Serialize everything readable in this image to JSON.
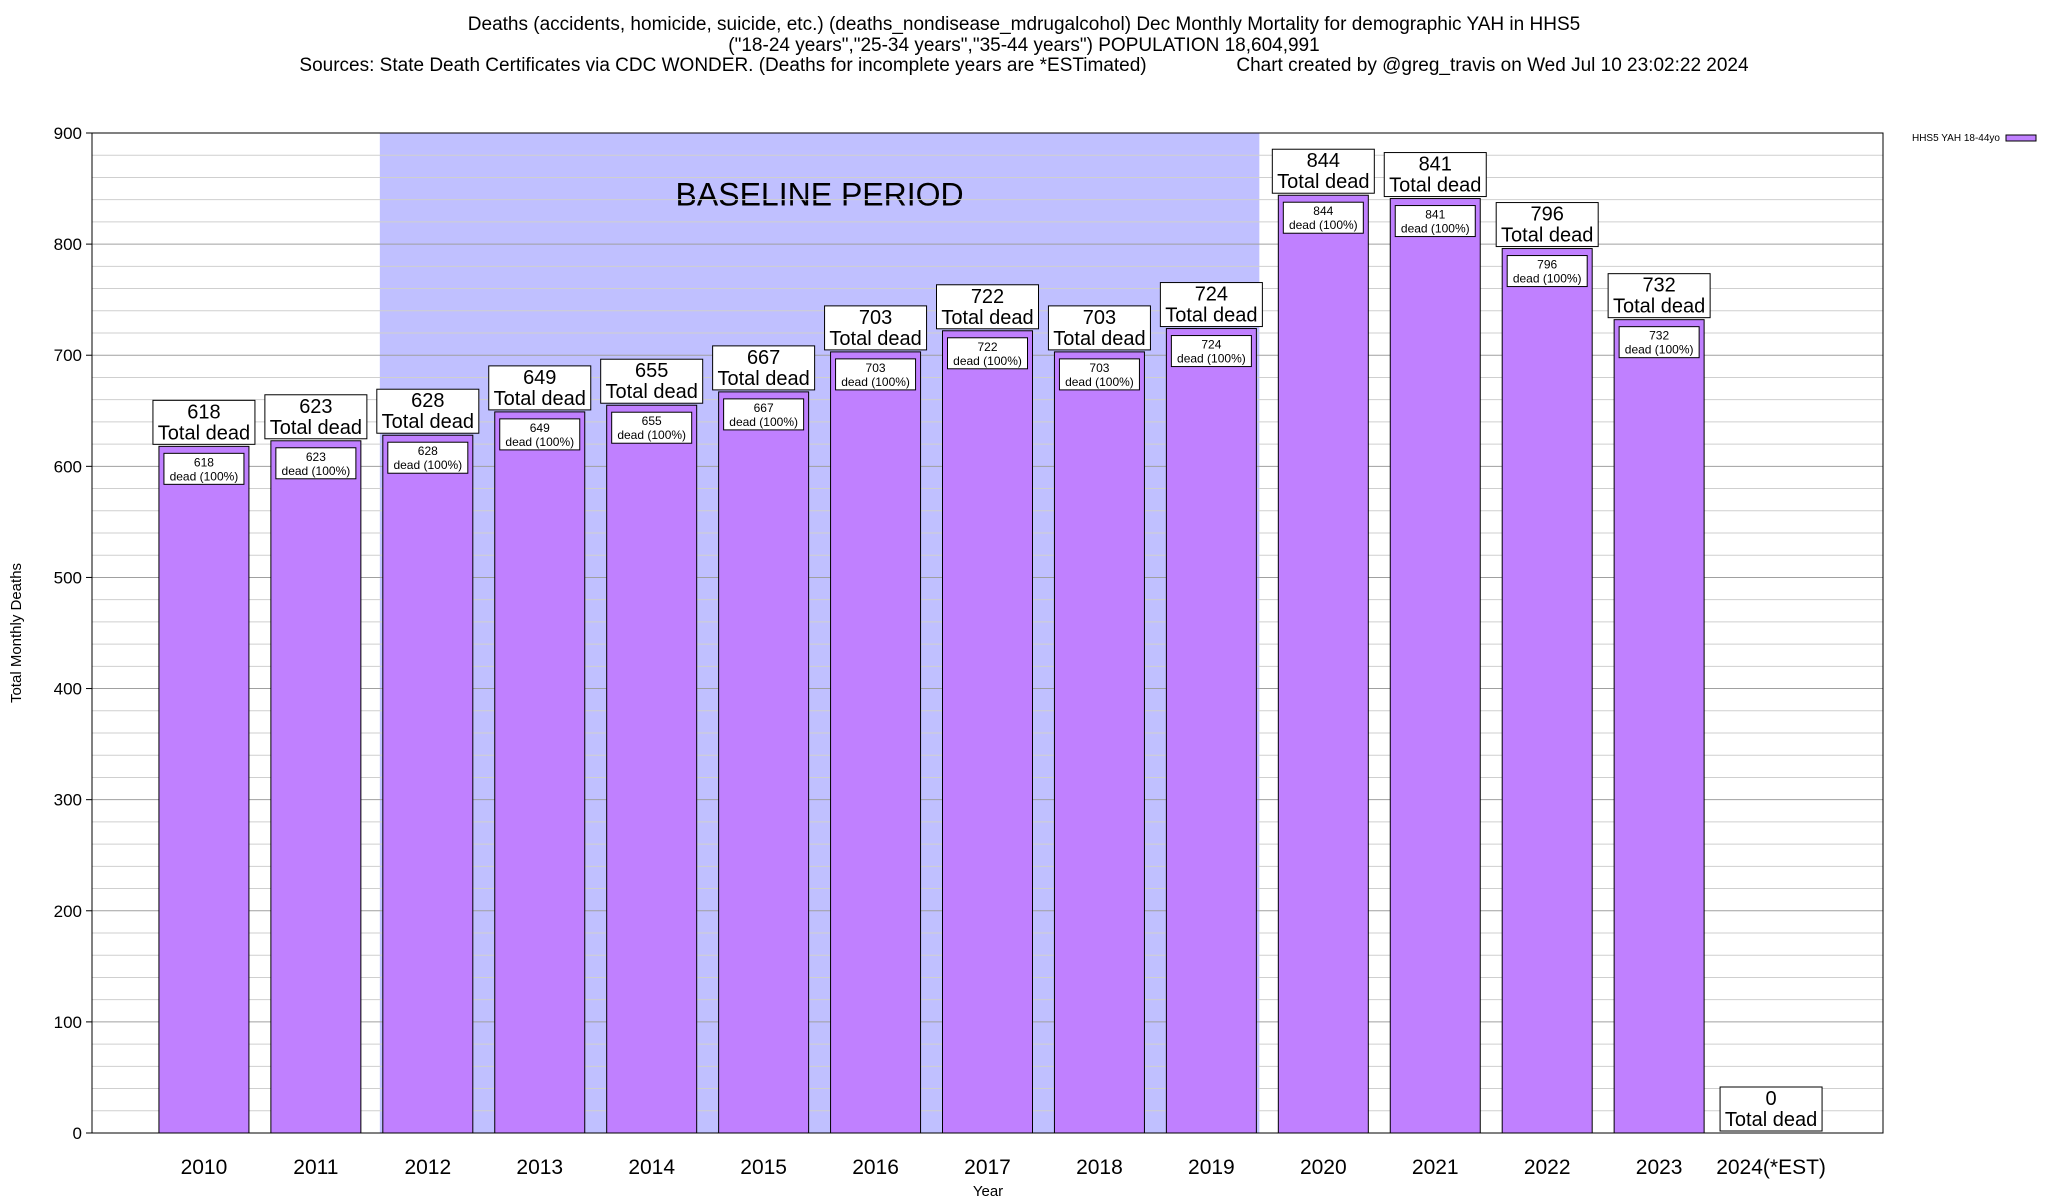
{
  "header": {
    "title_line1": "Deaths (accidents, homicide, suicide, etc.) (deaths_nondisease_mdrugalcohol) Dec Monthly Mortality for demographic YAH in HHS5",
    "title_line2": "(\"18-24 years\",\"25-34 years\",\"35-44 years\") POPULATION 18,604,991",
    "title_line3": "Sources: State Death Certificates via CDC WONDER. (Deaths for incomplete years are *ESTimated)                 Chart created by @greg_travis on Wed Jul 10 23:02:22 2024"
  },
  "chart_data": {
    "type": "bar",
    "title": "Deaths (accidents, homicide, suicide, etc.) (deaths_nondisease_mdrugalcohol) Dec Monthly Mortality for demographic YAH in HHS5",
    "xlabel": "Year",
    "ylabel": "Total Monthly Deaths",
    "ylim": [
      0,
      900
    ],
    "yticks": [
      0,
      100,
      200,
      300,
      400,
      500,
      600,
      700,
      800,
      900
    ],
    "grid": true,
    "legend_position": "top-right",
    "categories": [
      "2010",
      "2011",
      "2012",
      "2013",
      "2014",
      "2015",
      "2016",
      "2017",
      "2018",
      "2019",
      "2020",
      "2021",
      "2022",
      "2023",
      "2024(*EST)"
    ],
    "series": [
      {
        "name": "HHS5 YAH 18-44yo",
        "values": [
          618,
          623,
          628,
          649,
          655,
          667,
          703,
          722,
          703,
          724,
          844,
          841,
          796,
          732,
          0
        ]
      }
    ],
    "top_label_suffix": "Total dead",
    "inner_label_suffix": "dead (100%)",
    "baseline": {
      "label": "BASELINE PERIOD",
      "start_index": 2,
      "end_index": 9
    },
    "colors": {
      "bar": "#c080ff",
      "baseline_band": "#c0c0ff",
      "grid": "#b0b0b0"
    }
  }
}
